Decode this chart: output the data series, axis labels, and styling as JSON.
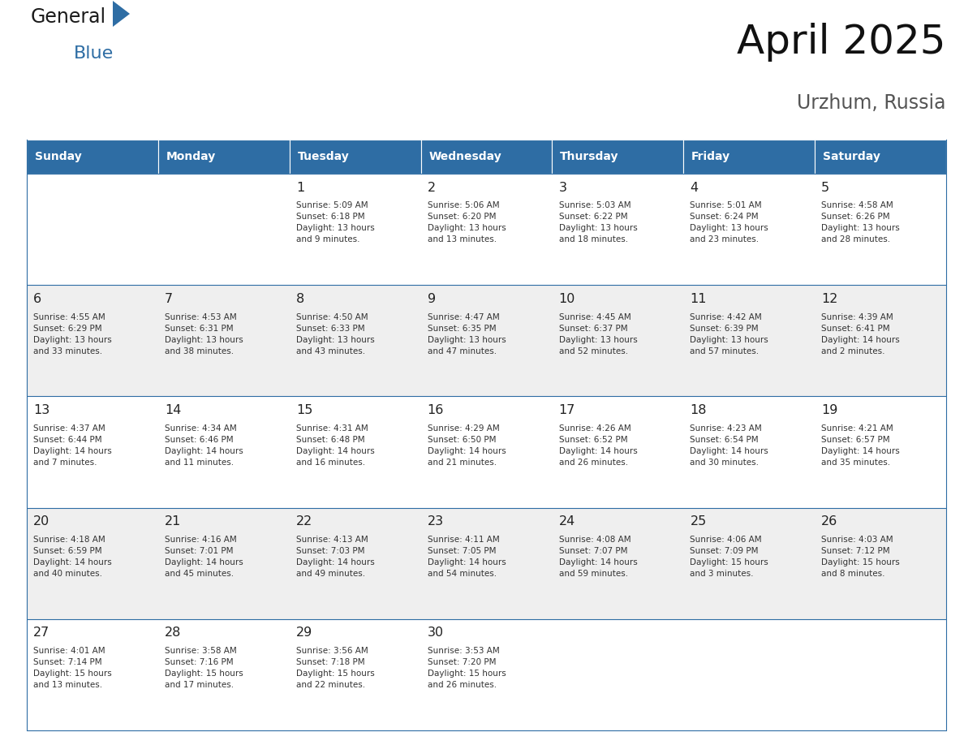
{
  "title": "April 2025",
  "subtitle": "Urzhum, Russia",
  "header_bg_color": "#2E6DA4",
  "header_text_color": "#FFFFFF",
  "row_colors": [
    "#FFFFFF",
    "#EFEFEF",
    "#FFFFFF",
    "#EFEFEF",
    "#FFFFFF"
  ],
  "text_color": "#333333",
  "day_number_color": "#222222",
  "border_color": "#2E6DA4",
  "grid_line_color": "#2E6DA4",
  "days_of_week": [
    "Sunday",
    "Monday",
    "Tuesday",
    "Wednesday",
    "Thursday",
    "Friday",
    "Saturday"
  ],
  "weeks": [
    [
      {
        "day": "",
        "info": ""
      },
      {
        "day": "",
        "info": ""
      },
      {
        "day": "1",
        "info": "Sunrise: 5:09 AM\nSunset: 6:18 PM\nDaylight: 13 hours\nand 9 minutes."
      },
      {
        "day": "2",
        "info": "Sunrise: 5:06 AM\nSunset: 6:20 PM\nDaylight: 13 hours\nand 13 minutes."
      },
      {
        "day": "3",
        "info": "Sunrise: 5:03 AM\nSunset: 6:22 PM\nDaylight: 13 hours\nand 18 minutes."
      },
      {
        "day": "4",
        "info": "Sunrise: 5:01 AM\nSunset: 6:24 PM\nDaylight: 13 hours\nand 23 minutes."
      },
      {
        "day": "5",
        "info": "Sunrise: 4:58 AM\nSunset: 6:26 PM\nDaylight: 13 hours\nand 28 minutes."
      }
    ],
    [
      {
        "day": "6",
        "info": "Sunrise: 4:55 AM\nSunset: 6:29 PM\nDaylight: 13 hours\nand 33 minutes."
      },
      {
        "day": "7",
        "info": "Sunrise: 4:53 AM\nSunset: 6:31 PM\nDaylight: 13 hours\nand 38 minutes."
      },
      {
        "day": "8",
        "info": "Sunrise: 4:50 AM\nSunset: 6:33 PM\nDaylight: 13 hours\nand 43 minutes."
      },
      {
        "day": "9",
        "info": "Sunrise: 4:47 AM\nSunset: 6:35 PM\nDaylight: 13 hours\nand 47 minutes."
      },
      {
        "day": "10",
        "info": "Sunrise: 4:45 AM\nSunset: 6:37 PM\nDaylight: 13 hours\nand 52 minutes."
      },
      {
        "day": "11",
        "info": "Sunrise: 4:42 AM\nSunset: 6:39 PM\nDaylight: 13 hours\nand 57 minutes."
      },
      {
        "day": "12",
        "info": "Sunrise: 4:39 AM\nSunset: 6:41 PM\nDaylight: 14 hours\nand 2 minutes."
      }
    ],
    [
      {
        "day": "13",
        "info": "Sunrise: 4:37 AM\nSunset: 6:44 PM\nDaylight: 14 hours\nand 7 minutes."
      },
      {
        "day": "14",
        "info": "Sunrise: 4:34 AM\nSunset: 6:46 PM\nDaylight: 14 hours\nand 11 minutes."
      },
      {
        "day": "15",
        "info": "Sunrise: 4:31 AM\nSunset: 6:48 PM\nDaylight: 14 hours\nand 16 minutes."
      },
      {
        "day": "16",
        "info": "Sunrise: 4:29 AM\nSunset: 6:50 PM\nDaylight: 14 hours\nand 21 minutes."
      },
      {
        "day": "17",
        "info": "Sunrise: 4:26 AM\nSunset: 6:52 PM\nDaylight: 14 hours\nand 26 minutes."
      },
      {
        "day": "18",
        "info": "Sunrise: 4:23 AM\nSunset: 6:54 PM\nDaylight: 14 hours\nand 30 minutes."
      },
      {
        "day": "19",
        "info": "Sunrise: 4:21 AM\nSunset: 6:57 PM\nDaylight: 14 hours\nand 35 minutes."
      }
    ],
    [
      {
        "day": "20",
        "info": "Sunrise: 4:18 AM\nSunset: 6:59 PM\nDaylight: 14 hours\nand 40 minutes."
      },
      {
        "day": "21",
        "info": "Sunrise: 4:16 AM\nSunset: 7:01 PM\nDaylight: 14 hours\nand 45 minutes."
      },
      {
        "day": "22",
        "info": "Sunrise: 4:13 AM\nSunset: 7:03 PM\nDaylight: 14 hours\nand 49 minutes."
      },
      {
        "day": "23",
        "info": "Sunrise: 4:11 AM\nSunset: 7:05 PM\nDaylight: 14 hours\nand 54 minutes."
      },
      {
        "day": "24",
        "info": "Sunrise: 4:08 AM\nSunset: 7:07 PM\nDaylight: 14 hours\nand 59 minutes."
      },
      {
        "day": "25",
        "info": "Sunrise: 4:06 AM\nSunset: 7:09 PM\nDaylight: 15 hours\nand 3 minutes."
      },
      {
        "day": "26",
        "info": "Sunrise: 4:03 AM\nSunset: 7:12 PM\nDaylight: 15 hours\nand 8 minutes."
      }
    ],
    [
      {
        "day": "27",
        "info": "Sunrise: 4:01 AM\nSunset: 7:14 PM\nDaylight: 15 hours\nand 13 minutes."
      },
      {
        "day": "28",
        "info": "Sunrise: 3:58 AM\nSunset: 7:16 PM\nDaylight: 15 hours\nand 17 minutes."
      },
      {
        "day": "29",
        "info": "Sunrise: 3:56 AM\nSunset: 7:18 PM\nDaylight: 15 hours\nand 22 minutes."
      },
      {
        "day": "30",
        "info": "Sunrise: 3:53 AM\nSunset: 7:20 PM\nDaylight: 15 hours\nand 26 minutes."
      },
      {
        "day": "",
        "info": ""
      },
      {
        "day": "",
        "info": ""
      },
      {
        "day": "",
        "info": ""
      }
    ]
  ]
}
